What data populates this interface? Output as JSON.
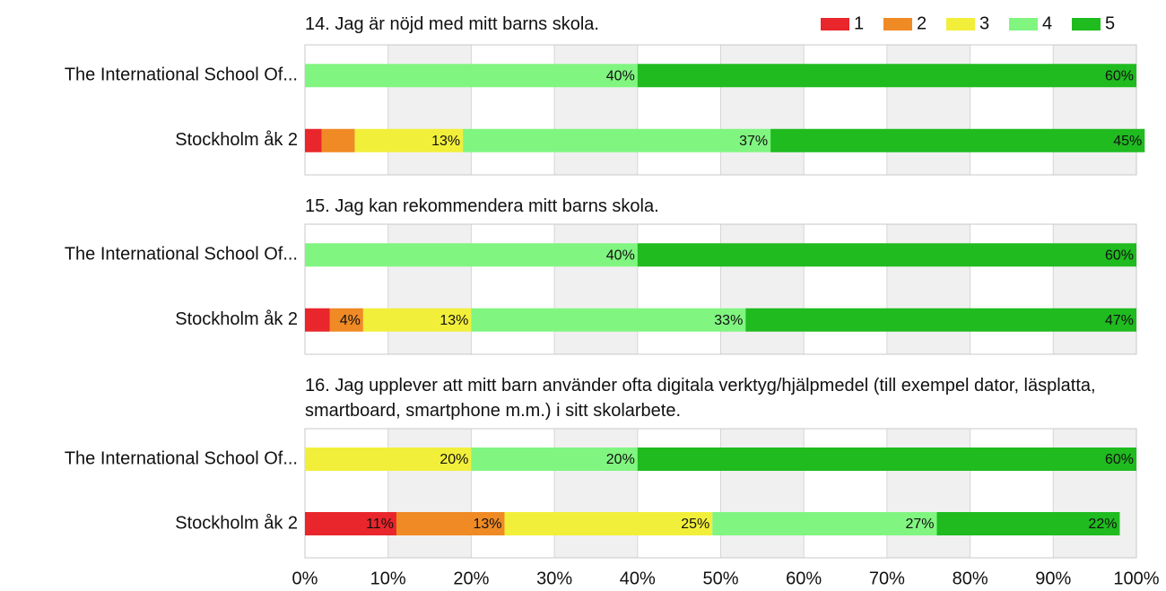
{
  "chart_data": [
    {
      "type": "bar",
      "title": "14. Jag är nöjd med mitt barns skola.",
      "categories": [
        "The International School Of...",
        "Stockholm åk 2"
      ],
      "series": [
        {
          "name": "1",
          "color": "#e8262b",
          "values": [
            0,
            2
          ],
          "value_labels": [
            null,
            null
          ]
        },
        {
          "name": "2",
          "color": "#f08a24",
          "values": [
            0,
            4
          ],
          "value_labels": [
            null,
            null
          ]
        },
        {
          "name": "3",
          "color": "#f2ef3a",
          "values": [
            0,
            13
          ],
          "value_labels": [
            null,
            "13%"
          ]
        },
        {
          "name": "4",
          "color": "#80f580",
          "values": [
            40,
            37
          ],
          "value_labels": [
            "40%",
            "37%"
          ]
        },
        {
          "name": "5",
          "color": "#1fbb1f",
          "values": [
            60,
            45
          ],
          "value_labels": [
            "60%",
            "45%"
          ]
        }
      ],
      "xlim": [
        0,
        100
      ],
      "grid": true,
      "legend": "top-right"
    },
    {
      "type": "bar",
      "title": "15. Jag kan rekommendera mitt barns skola.",
      "categories": [
        "The International School Of...",
        "Stockholm åk 2"
      ],
      "series": [
        {
          "color": "#e8262b",
          "values": [
            0,
            3
          ],
          "value_labels": [
            null,
            null
          ]
        },
        {
          "color": "#f08a24",
          "values": [
            0,
            4
          ],
          "value_labels": [
            null,
            "4%"
          ]
        },
        {
          "color": "#f2ef3a",
          "values": [
            0,
            13
          ],
          "value_labels": [
            null,
            "13%"
          ]
        },
        {
          "color": "#80f580",
          "values": [
            40,
            33
          ],
          "value_labels": [
            "40%",
            "33%"
          ]
        },
        {
          "color": "#1fbb1f",
          "values": [
            60,
            47
          ],
          "value_labels": [
            "60%",
            "47%"
          ]
        }
      ],
      "xlim": [
        0,
        100
      ],
      "grid": true
    },
    {
      "type": "bar",
      "title": "16. Jag upplever att mitt barn använder ofta digitala verktyg/hjälpmedel (till exempel dator, läsplatta, smartboard, smartphone m.m.) i sitt skolarbete.",
      "categories": [
        "The International School Of...",
        "Stockholm åk 2"
      ],
      "series": [
        {
          "color": "#e8262b",
          "values": [
            0,
            11
          ],
          "value_labels": [
            null,
            "11%"
          ]
        },
        {
          "color": "#f08a24",
          "values": [
            0,
            13
          ],
          "value_labels": [
            null,
            "13%"
          ]
        },
        {
          "color": "#f2ef3a",
          "values": [
            20,
            25
          ],
          "value_labels": [
            "20%",
            "25%"
          ]
        },
        {
          "color": "#80f580",
          "values": [
            20,
            27
          ],
          "value_labels": [
            "20%",
            "27%"
          ]
        },
        {
          "color": "#1fbb1f",
          "values": [
            60,
            22
          ],
          "value_labels": [
            "60%",
            "22%"
          ]
        }
      ],
      "xlim": [
        0,
        100
      ],
      "grid": true,
      "xticks": [
        {
          "value": 0,
          "label": "0%"
        },
        {
          "value": 10,
          "label": "10%"
        },
        {
          "value": 20,
          "label": "20%"
        },
        {
          "value": 30,
          "label": "30%"
        },
        {
          "value": 40,
          "label": "40%"
        },
        {
          "value": 50,
          "label": "50%"
        },
        {
          "value": 60,
          "label": "60%"
        },
        {
          "value": 70,
          "label": "70%"
        },
        {
          "value": 80,
          "label": "80%"
        },
        {
          "value": 90,
          "label": "90%"
        },
        {
          "value": 100,
          "label": "100%"
        }
      ]
    }
  ]
}
